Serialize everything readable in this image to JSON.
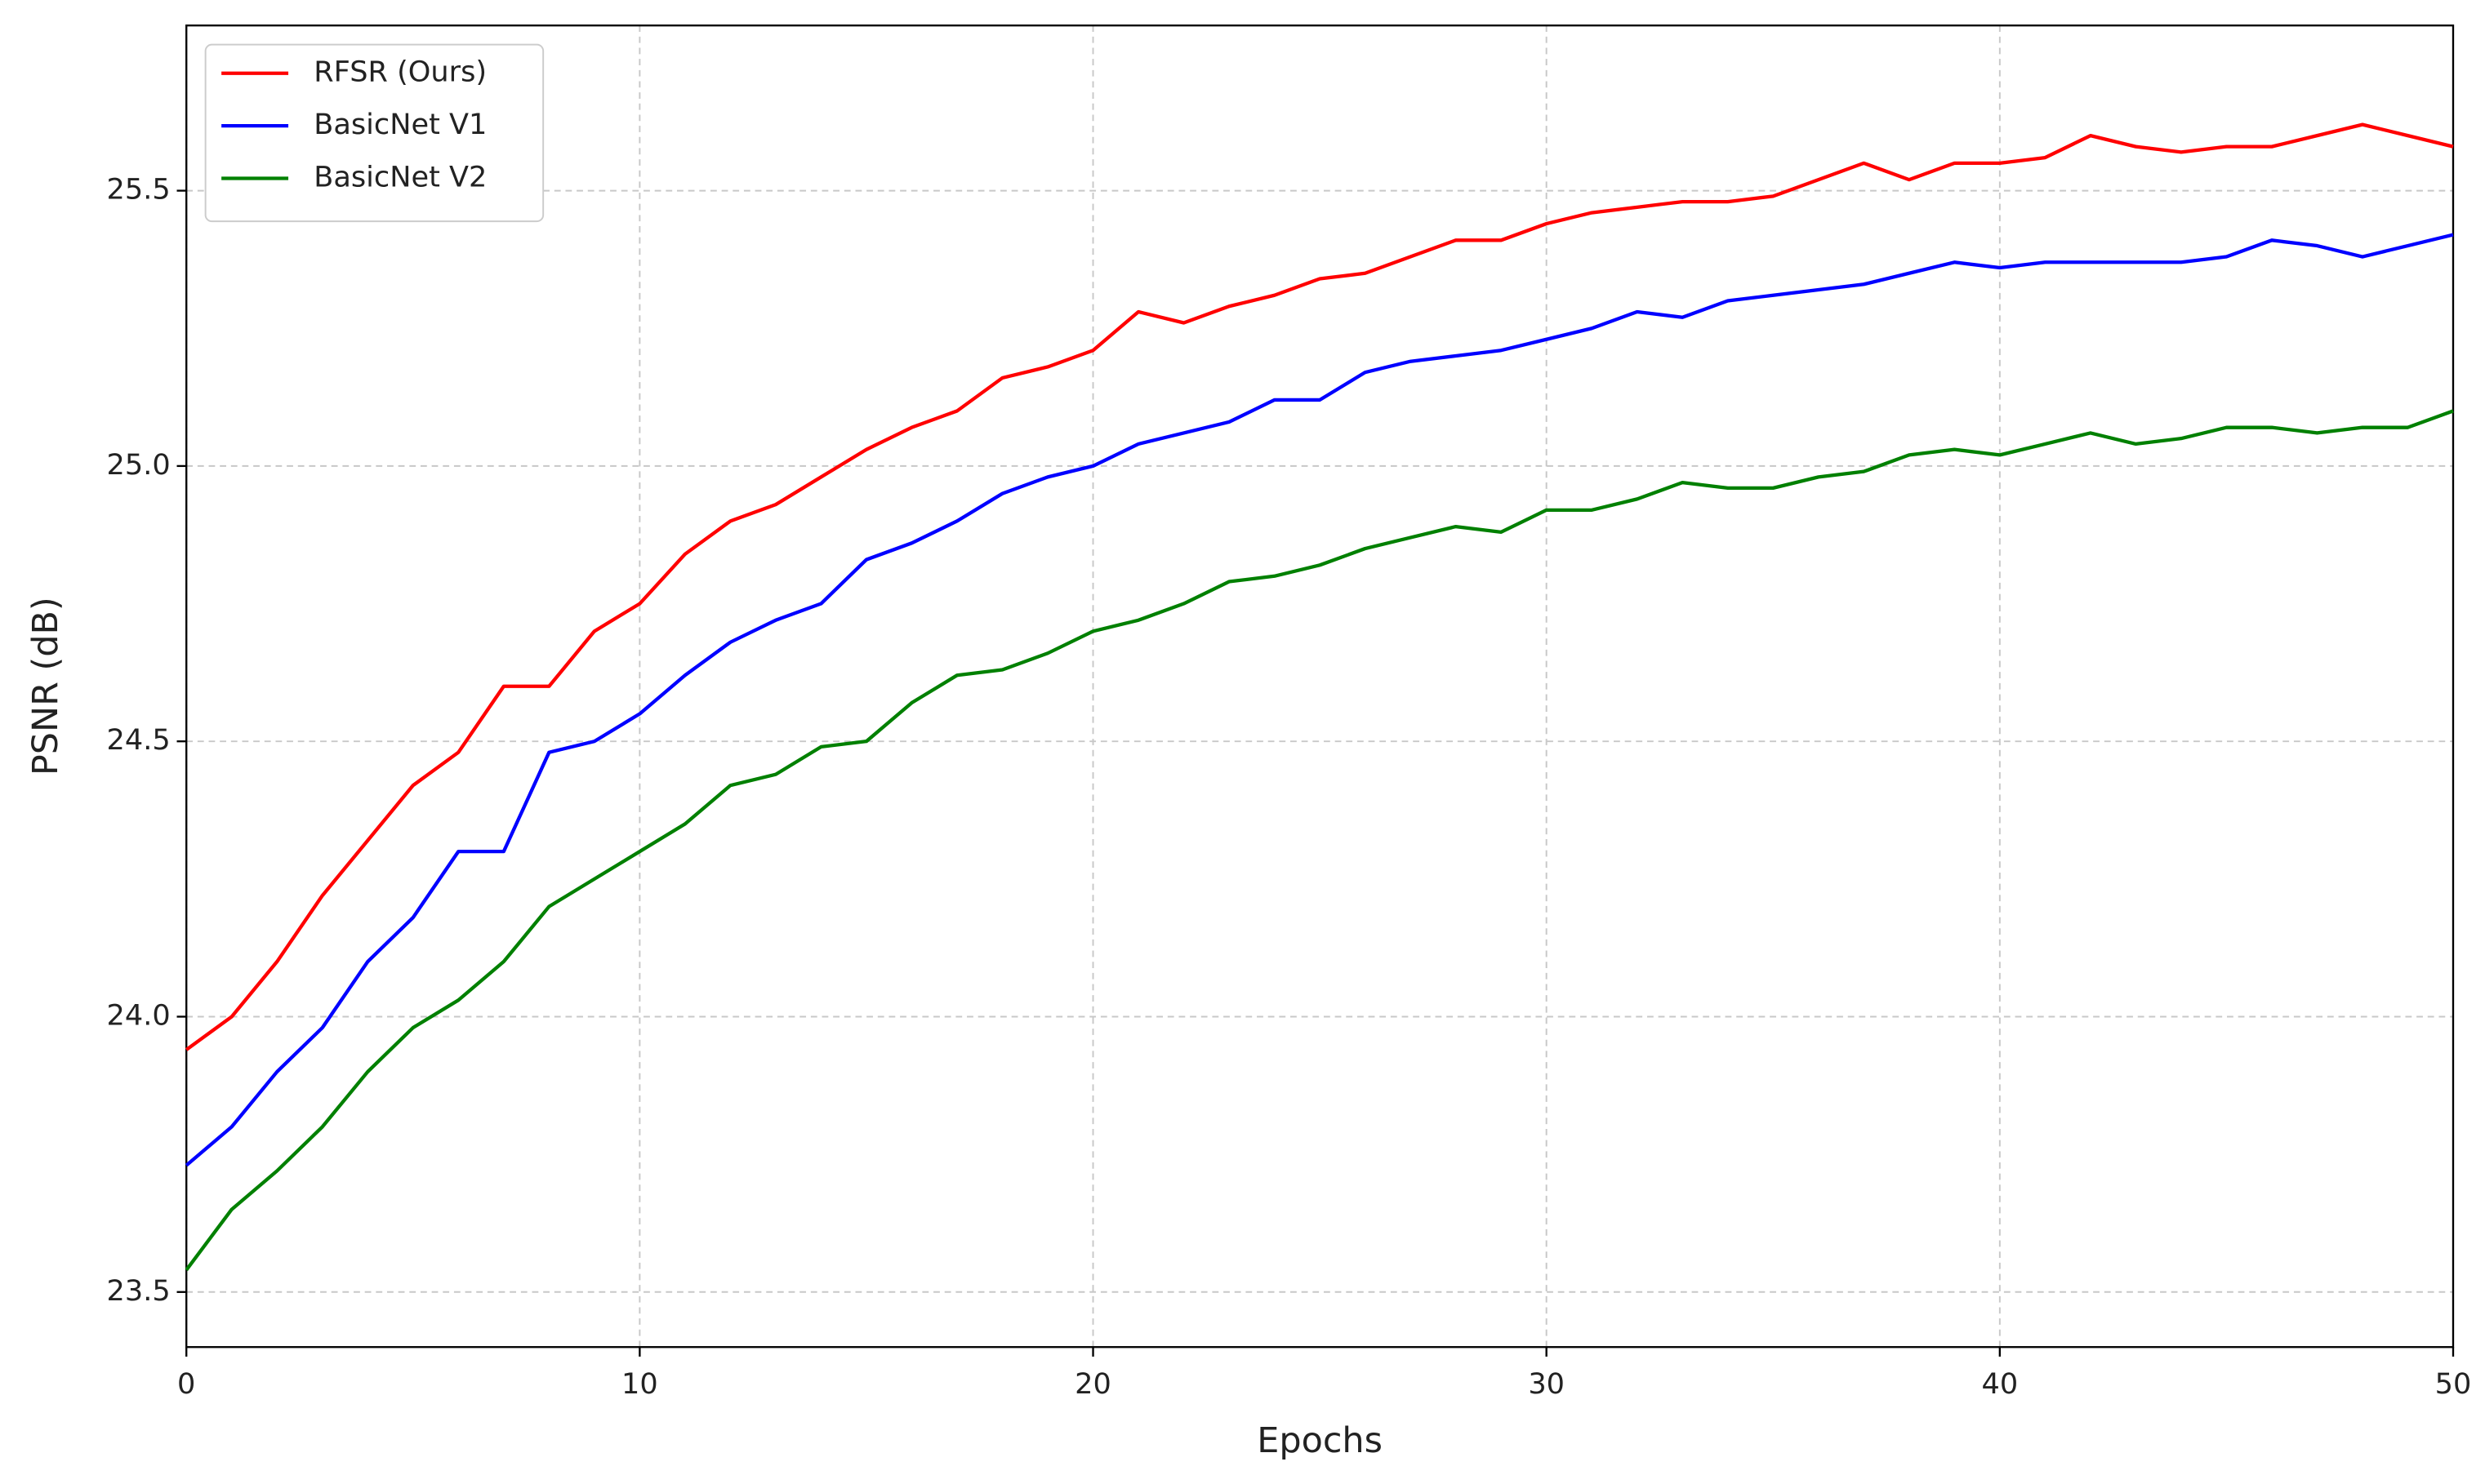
{
  "chart_data": {
    "type": "line",
    "xlabel": "Epochs",
    "ylabel": "PSNR (dB)",
    "x": [
      0,
      1,
      2,
      3,
      4,
      5,
      6,
      7,
      8,
      9,
      10,
      11,
      12,
      13,
      14,
      15,
      16,
      17,
      18,
      19,
      20,
      21,
      22,
      23,
      24,
      25,
      26,
      27,
      28,
      29,
      30,
      31,
      32,
      33,
      34,
      35,
      36,
      37,
      38,
      39,
      40,
      41,
      42,
      43,
      44,
      45,
      46,
      47,
      48,
      49,
      50
    ],
    "series": [
      {
        "name": "RFSR (Ours)",
        "color": "#ff0000",
        "values": [
          23.94,
          24.0,
          24.1,
          24.22,
          24.32,
          24.42,
          24.48,
          24.6,
          24.6,
          24.7,
          24.75,
          24.84,
          24.9,
          24.93,
          24.98,
          25.03,
          25.07,
          25.1,
          25.16,
          25.18,
          25.21,
          25.28,
          25.26,
          25.29,
          25.31,
          25.34,
          25.35,
          25.38,
          25.41,
          25.41,
          25.44,
          25.46,
          25.47,
          25.48,
          25.48,
          25.49,
          25.52,
          25.55,
          25.52,
          25.55,
          25.55,
          25.56,
          25.6,
          25.58,
          25.57,
          25.58,
          25.58,
          25.6,
          25.62,
          25.6,
          25.58
        ]
      },
      {
        "name": "BasicNet V1",
        "color": "#0000ff",
        "values": [
          23.73,
          23.8,
          23.9,
          23.98,
          24.1,
          24.18,
          24.3,
          24.3,
          24.48,
          24.5,
          24.55,
          24.62,
          24.68,
          24.72,
          24.75,
          24.83,
          24.86,
          24.9,
          24.95,
          24.98,
          25.0,
          25.04,
          25.06,
          25.08,
          25.12,
          25.12,
          25.17,
          25.19,
          25.2,
          25.21,
          25.23,
          25.25,
          25.28,
          25.27,
          25.3,
          25.31,
          25.32,
          25.33,
          25.35,
          25.37,
          25.36,
          25.37,
          25.37,
          25.37,
          25.37,
          25.38,
          25.41,
          25.4,
          25.38,
          25.4,
          25.42
        ]
      },
      {
        "name": "BasicNet V2",
        "color": "#008000",
        "values": [
          23.54,
          23.65,
          23.72,
          23.8,
          23.9,
          23.98,
          24.03,
          24.1,
          24.2,
          24.25,
          24.3,
          24.35,
          24.42,
          24.44,
          24.49,
          24.5,
          24.57,
          24.62,
          24.63,
          24.66,
          24.7,
          24.72,
          24.75,
          24.79,
          24.8,
          24.82,
          24.85,
          24.87,
          24.89,
          24.88,
          24.92,
          24.92,
          24.94,
          24.97,
          24.96,
          24.96,
          24.98,
          24.99,
          25.02,
          25.03,
          25.02,
          25.04,
          25.06,
          25.04,
          25.05,
          25.07,
          25.07,
          25.06,
          25.07,
          25.07,
          25.1
        ]
      }
    ],
    "xlim": [
      0,
      50
    ],
    "xticks": [
      0,
      10,
      20,
      30,
      40,
      50
    ],
    "ylim": [
      23.4,
      25.8
    ],
    "yticks": [
      23.5,
      24.0,
      24.5,
      25.0,
      25.5
    ],
    "grid": true,
    "legend": "upper left"
  }
}
